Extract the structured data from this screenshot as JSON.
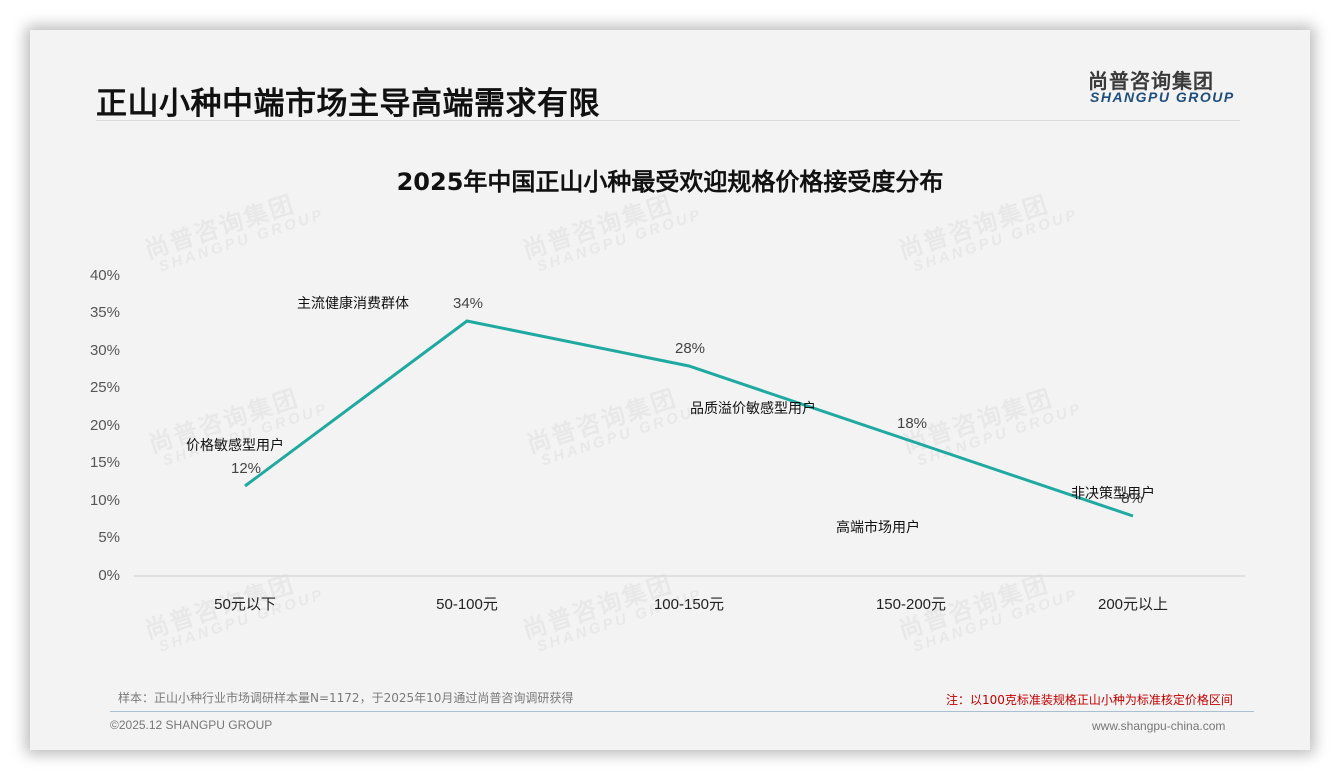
{
  "slide": {
    "title": "正山小种中端市场主导高端需求有限",
    "logo": {
      "cn": "尚普咨询集团",
      "en": "SHANGPU GROUP"
    },
    "watermark": {
      "cn": "尚普咨询集团",
      "en": "SHANGPU GROUP"
    },
    "sample_note": "样本：正山小种行业市场调研样本量N=1172，于2025年10月通过尚普咨询调研获得",
    "note": "注：以100克标准装规格正山小种为标准核定价格区间",
    "copyright": "©2025.12 SHANGPU GROUP",
    "website": "www.shangpu-china.com"
  },
  "colors": {
    "line": "#1fa9a0",
    "note": "#c00000",
    "logo_en": "#1f4e79",
    "background": "#f3f3f3"
  },
  "chart_data": {
    "type": "line",
    "title": "2025年中国正山小种最受欢迎规格价格接受度分布",
    "xlabel": "",
    "ylabel": "",
    "categories": [
      "50元以下",
      "50-100元",
      "100-150元",
      "150-200元",
      "200元以上"
    ],
    "values": [
      12,
      34,
      28,
      18,
      8
    ],
    "value_labels": [
      "12%",
      "34%",
      "28%",
      "18%",
      "8%"
    ],
    "ylim": [
      0,
      40
    ],
    "yticks": [
      "0%",
      "5%",
      "10%",
      "15%",
      "20%",
      "25%",
      "30%",
      "35%",
      "40%"
    ],
    "annotations": [
      "价格敏感型用户",
      "主流健康消费群体",
      "品质溢价敏感型用户",
      "高端市场用户",
      "非决策型用户"
    ],
    "grid": false,
    "legend": "none"
  }
}
